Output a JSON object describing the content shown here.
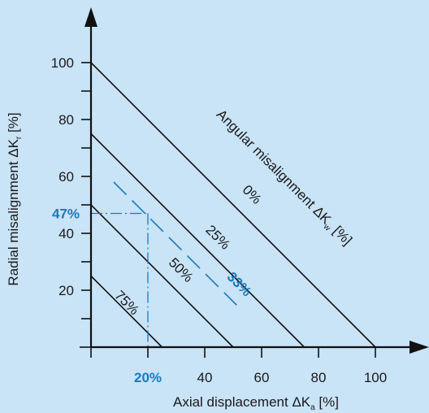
{
  "chart_data": {
    "type": "line",
    "xlabel": {
      "main": "Axial displacement  ΔK",
      "sub": "a",
      "unit": " [%]"
    },
    "ylabel": {
      "main": "Radial misalignment  ΔK",
      "sub": "r",
      "unit": " [%]"
    },
    "xlim": [
      0,
      110
    ],
    "ylim": [
      0,
      115
    ],
    "xticks": [
      20,
      40,
      60,
      80,
      100
    ],
    "xtick_labels": [
      "20%",
      "40",
      "60",
      "80",
      "100"
    ],
    "yticks": [
      10,
      20,
      30,
      40,
      50,
      60,
      70,
      80,
      90,
      100
    ],
    "ytick_labels": [
      {
        "value": 20,
        "text": "20"
      },
      {
        "value": 40,
        "text": "40"
      },
      {
        "value": 60,
        "text": "60"
      },
      {
        "value": 80,
        "text": "80"
      },
      {
        "value": 100,
        "text": "100"
      }
    ],
    "series_title": {
      "main": "Angular misalignment  ΔK",
      "sub": "w",
      "unit": " [%]"
    },
    "series": [
      {
        "name": "0%",
        "x": [
          0,
          100
        ],
        "y": [
          100,
          0
        ]
      },
      {
        "name": "25%",
        "x": [
          0,
          75
        ],
        "y": [
          75,
          0
        ]
      },
      {
        "name": "50%",
        "x": [
          0,
          50
        ],
        "y": [
          50,
          0
        ]
      },
      {
        "name": "75%",
        "x": [
          0,
          25
        ],
        "y": [
          25,
          0
        ]
      }
    ],
    "example": {
      "series_label": "33%",
      "x": [
        8,
        53
      ],
      "y": [
        58,
        13
      ],
      "point": {
        "x": 20,
        "y": 47
      },
      "point_y_label": "47%",
      "point_x_label": "20%"
    },
    "colors": {
      "background": "#c9e3f7",
      "line": "#111111",
      "accent": "#1b79bd"
    }
  }
}
